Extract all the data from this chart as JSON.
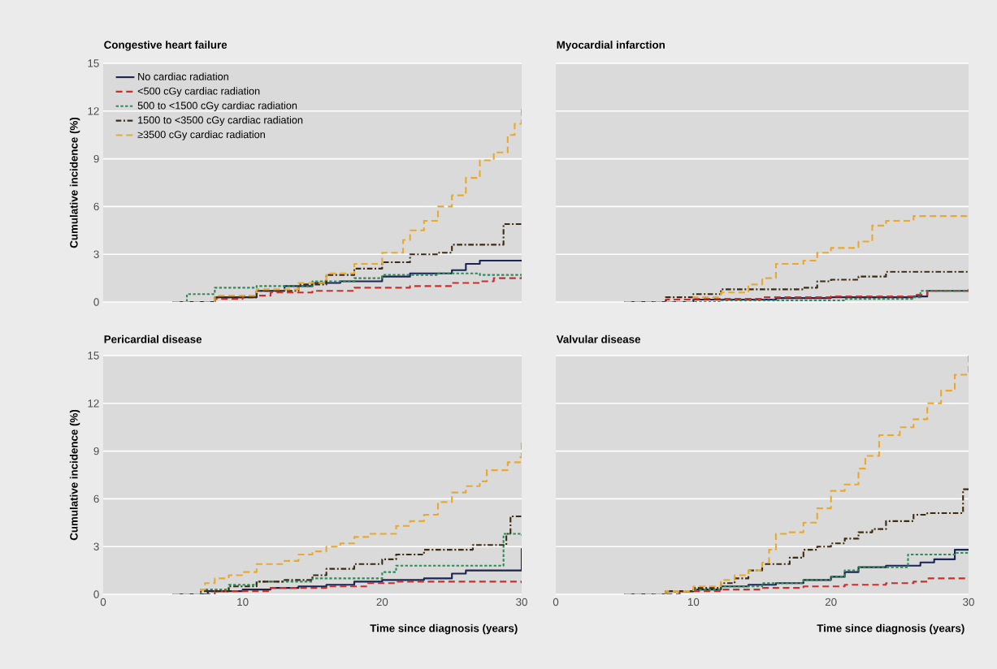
{
  "chart_data": [
    {
      "type": "step",
      "title": "Congestive heart failure",
      "ylabel": "Cumulative incidence (%)",
      "xlim": [
        0,
        30
      ],
      "ylim": [
        0,
        15
      ],
      "xticks": [
        0,
        10,
        20,
        30
      ],
      "yticks": [
        0,
        3,
        6,
        9,
        12,
        15
      ],
      "grid": "y",
      "legend": "top left",
      "tick_labels": "y",
      "series": [
        {
          "name": "No cardiac radiation",
          "color": "#1b2452",
          "line_style": "solid",
          "x": [
            5,
            8,
            11,
            13,
            15,
            17,
            20,
            22,
            25,
            26,
            27,
            30
          ],
          "values": [
            0,
            0.3,
            0.7,
            1.0,
            1.2,
            1.3,
            1.6,
            1.8,
            2.0,
            2.4,
            2.6,
            2.6
          ]
        },
        {
          "name": "<500 cGy cardiac radiation",
          "color": "#c8302c",
          "line_style": "dashed",
          "x": [
            5,
            8,
            10,
            12,
            15,
            18,
            22,
            25,
            27,
            28,
            30
          ],
          "values": [
            0,
            0.2,
            0.4,
            0.6,
            0.7,
            0.9,
            1.0,
            1.2,
            1.3,
            1.5,
            1.6
          ]
        },
        {
          "name": "500 to <1500 cGy cardiac radiation",
          "color": "#2e8b57",
          "line_style": "dotted",
          "x": [
            5,
            6,
            8,
            11,
            15,
            18,
            20,
            24,
            27,
            30
          ],
          "values": [
            0,
            0.5,
            0.9,
            1.0,
            1.3,
            1.5,
            1.7,
            1.8,
            1.7,
            1.7
          ]
        },
        {
          "name": "1500 to <3500 cGy cardiac radiation",
          "color": "#3d2b12",
          "line_style": "dashdot",
          "x": [
            5,
            8,
            11,
            14,
            16,
            18,
            20,
            22,
            24,
            25,
            28.7,
            30
          ],
          "values": [
            0,
            0.3,
            0.7,
            1.1,
            1.7,
            2.1,
            2.5,
            3.0,
            3.1,
            3.6,
            4.9,
            4.9
          ]
        },
        {
          "name": "≥3500 cGy cardiac radiation",
          "color": "#e9a92e",
          "line_style": "dashed",
          "x": [
            5,
            8,
            11,
            14,
            16,
            18,
            20,
            21.5,
            22,
            23,
            24,
            25,
            26,
            27,
            28,
            29,
            29.5,
            30
          ],
          "values": [
            0,
            0.4,
            0.8,
            1.2,
            1.8,
            2.4,
            3.1,
            3.9,
            4.5,
            5.1,
            6.0,
            6.7,
            7.8,
            8.9,
            9.4,
            10.5,
            11.2,
            12.3
          ]
        }
      ]
    },
    {
      "type": "step",
      "title": "Myocardial infarction",
      "xlim": [
        0,
        30
      ],
      "ylim": [
        0,
        15
      ],
      "xticks": [
        0,
        10,
        20,
        30
      ],
      "yticks": [
        0,
        3,
        6,
        9,
        12,
        15
      ],
      "grid": "y",
      "tick_labels": false,
      "series": [
        {
          "color": "#1b2452",
          "line_style": "solid",
          "x": [
            5,
            10,
            16,
            20,
            26,
            27,
            30
          ],
          "values": [
            0,
            0.15,
            0.25,
            0.3,
            0.35,
            0.7,
            0.7
          ]
        },
        {
          "color": "#c8302c",
          "line_style": "dashed",
          "x": [
            5,
            8,
            10,
            15,
            20,
            26,
            27,
            30
          ],
          "values": [
            0,
            0.15,
            0.2,
            0.3,
            0.35,
            0.45,
            0.7,
            0.8
          ]
        },
        {
          "color": "#2e8b57",
          "line_style": "dotted",
          "x": [
            5,
            12,
            19,
            21,
            26,
            26.5,
            30
          ],
          "values": [
            0,
            0.1,
            0.1,
            0.2,
            0.3,
            0.7,
            0.8
          ]
        },
        {
          "color": "#3d2b12",
          "line_style": "dashdot",
          "x": [
            5,
            8,
            10,
            12,
            14,
            18,
            19,
            20,
            22,
            24,
            30
          ],
          "values": [
            0,
            0.3,
            0.5,
            0.8,
            0.8,
            0.9,
            1.3,
            1.4,
            1.6,
            1.9,
            1.9
          ]
        },
        {
          "color": "#e9a92e",
          "line_style": "dashed",
          "x": [
            5,
            10,
            12,
            14,
            15,
            16,
            18,
            19,
            20,
            22,
            23,
            24,
            26,
            30
          ],
          "values": [
            0,
            0.3,
            0.6,
            1.1,
            1.5,
            2.4,
            2.6,
            3.1,
            3.4,
            3.8,
            4.8,
            5.1,
            5.4,
            5.4
          ]
        }
      ]
    },
    {
      "type": "step",
      "title": "Pericardial disease",
      "ylabel": "Cumulative incidence (%)",
      "xlabel": "Time since diagnosis (years)",
      "xlim": [
        0,
        30
      ],
      "ylim": [
        0,
        15
      ],
      "xticks": [
        0,
        10,
        20,
        30
      ],
      "yticks": [
        0,
        3,
        6,
        9,
        12,
        15
      ],
      "grid": "y",
      "series": [
        {
          "color": "#1b2452",
          "line_style": "solid",
          "x": [
            5,
            7.5,
            10,
            12,
            14,
            16,
            18,
            20,
            23,
            25,
            26,
            29.9,
            30
          ],
          "values": [
            0,
            0.2,
            0.3,
            0.4,
            0.5,
            0.6,
            0.8,
            0.9,
            1.0,
            1.3,
            1.5,
            1.5,
            2.9
          ]
        },
        {
          "color": "#c8302c",
          "line_style": "dashed",
          "x": [
            5,
            8,
            12,
            16,
            19,
            21,
            30
          ],
          "values": [
            0,
            0.2,
            0.4,
            0.5,
            0.7,
            0.8,
            0.7
          ]
        },
        {
          "color": "#2e8b57",
          "line_style": "dotted",
          "x": [
            5,
            7,
            9,
            11,
            15,
            20,
            21,
            28.7,
            30
          ],
          "values": [
            0,
            0.3,
            0.6,
            0.8,
            1.0,
            1.4,
            1.8,
            3.8,
            3.7
          ]
        },
        {
          "color": "#3d2b12",
          "line_style": "dashdot",
          "x": [
            5,
            7,
            9,
            11,
            13,
            15,
            16,
            18,
            20,
            21,
            23,
            26.5,
            28.9,
            29.2,
            30
          ],
          "values": [
            0,
            0.2,
            0.5,
            0.8,
            0.9,
            1.2,
            1.6,
            1.9,
            2.2,
            2.5,
            2.8,
            3.1,
            3.8,
            4.9,
            4.9
          ]
        },
        {
          "color": "#e9a92e",
          "line_style": "dashed",
          "x": [
            5,
            7,
            7.3,
            8,
            9,
            10,
            11,
            13,
            14,
            15,
            16,
            17,
            18,
            19,
            21,
            22,
            23,
            24,
            25,
            26,
            27,
            27.5,
            29,
            29.9,
            30
          ],
          "values": [
            0,
            0.3,
            0.7,
            1.0,
            1.2,
            1.4,
            1.9,
            2.1,
            2.5,
            2.7,
            3.0,
            3.2,
            3.6,
            3.8,
            4.3,
            4.6,
            5.0,
            5.8,
            6.4,
            6.8,
            7.1,
            7.8,
            8.3,
            8.6,
            9.6
          ]
        }
      ]
    },
    {
      "type": "step",
      "title": "Valvular disease",
      "xlabel": "Time since diagnosis (years)",
      "xlim": [
        0,
        30
      ],
      "ylim": [
        0,
        15
      ],
      "xticks": [
        0,
        10,
        20,
        30
      ],
      "yticks": [
        0,
        3,
        6,
        9,
        12,
        15
      ],
      "grid": "y",
      "tick_labels": "x",
      "series": [
        {
          "color": "#1b2452",
          "line_style": "solid",
          "x": [
            5,
            8,
            10,
            12,
            14,
            16,
            18,
            20,
            21,
            22,
            24,
            26.5,
            27.5,
            29,
            30
          ],
          "values": [
            0,
            0.2,
            0.3,
            0.5,
            0.6,
            0.7,
            0.9,
            1.1,
            1.4,
            1.7,
            1.8,
            2.0,
            2.2,
            2.8,
            2.8
          ]
        },
        {
          "color": "#c8302c",
          "line_style": "dashed",
          "x": [
            5,
            9,
            12,
            15,
            18,
            21,
            24,
            26,
            27,
            30
          ],
          "values": [
            0,
            0.2,
            0.3,
            0.4,
            0.5,
            0.6,
            0.7,
            0.8,
            1.0,
            1.0
          ]
        },
        {
          "color": "#2e8b57",
          "line_style": "dotted",
          "x": [
            5,
            8,
            10,
            12,
            15,
            18,
            20,
            21,
            22,
            25.6,
            29,
            30
          ],
          "values": [
            0,
            0.2,
            0.3,
            0.5,
            0.7,
            0.9,
            1.1,
            1.5,
            1.7,
            2.5,
            2.6,
            2.6
          ]
        },
        {
          "color": "#3d2b12",
          "line_style": "dashdot",
          "x": [
            5,
            8,
            10,
            12,
            13,
            14,
            15,
            17,
            18,
            19,
            20,
            21,
            22,
            23,
            24,
            26,
            27,
            29.6,
            30
          ],
          "values": [
            0,
            0.2,
            0.4,
            0.7,
            1.0,
            1.5,
            1.9,
            2.3,
            2.8,
            3.0,
            3.2,
            3.5,
            3.9,
            4.1,
            4.6,
            5.0,
            5.1,
            6.6,
            6.6
          ]
        },
        {
          "color": "#e9a92e",
          "line_style": "dashed",
          "x": [
            5,
            8,
            10,
            12,
            13,
            14,
            15,
            15.5,
            16,
            17,
            18,
            19,
            20,
            21,
            22,
            22.5,
            23.5,
            25,
            26,
            27,
            28,
            29,
            30
          ],
          "values": [
            0,
            0.2,
            0.5,
            0.9,
            1.2,
            1.5,
            2.0,
            2.8,
            3.8,
            3.9,
            4.5,
            5.4,
            6.5,
            6.9,
            7.9,
            8.7,
            10.0,
            10.5,
            11.0,
            12.0,
            12.8,
            13.8,
            15.0
          ]
        }
      ]
    }
  ]
}
